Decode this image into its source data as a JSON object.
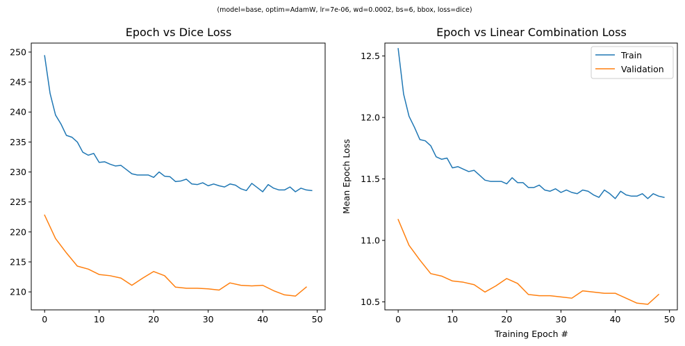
{
  "suptitle": "(model=base, optim=AdamW, lr=7e-06, wd=0.0002, bs=6, bbox, loss=dice)",
  "colors": {
    "train": "#1f77b4",
    "validation": "#ff7f0e"
  },
  "chart_data": [
    {
      "type": "line",
      "title": "Epoch vs Dice Loss",
      "xlabel": "",
      "ylabel": "",
      "xlim": [
        -2.45,
        51.45
      ],
      "ylim": [
        207.0,
        251.5
      ],
      "xticks": [
        0,
        10,
        20,
        30,
        40,
        50
      ],
      "yticks": [
        210,
        215,
        220,
        225,
        230,
        235,
        240,
        245,
        250
      ],
      "xtick_labels": [
        "0",
        "10",
        "20",
        "30",
        "40",
        "50"
      ],
      "ytick_labels": [
        "210",
        "215",
        "220",
        "225",
        "230",
        "235",
        "240",
        "245",
        "250"
      ],
      "legend": false,
      "series": [
        {
          "name": "Train",
          "color": "#1f77b4",
          "x": [
            0,
            1,
            2,
            3,
            4,
            5,
            6,
            7,
            8,
            9,
            10,
            11,
            12,
            13,
            14,
            15,
            16,
            17,
            18,
            19,
            20,
            21,
            22,
            23,
            24,
            25,
            26,
            27,
            28,
            29,
            30,
            31,
            32,
            33,
            34,
            35,
            36,
            37,
            38,
            39,
            40,
            41,
            42,
            43,
            44,
            45,
            46,
            47,
            48,
            49
          ],
          "y": [
            249.4,
            243.1,
            239.5,
            238.0,
            236.1,
            235.8,
            235.0,
            233.3,
            232.8,
            233.1,
            231.6,
            231.7,
            231.3,
            231.0,
            231.1,
            230.4,
            229.7,
            229.5,
            229.5,
            229.5,
            229.1,
            230.0,
            229.3,
            229.2,
            228.4,
            228.5,
            228.8,
            228.0,
            227.9,
            228.2,
            227.7,
            228.0,
            227.7,
            227.5,
            228.0,
            227.8,
            227.2,
            226.9,
            228.1,
            227.4,
            226.7,
            227.9,
            227.3,
            227.0,
            227.0,
            227.5,
            226.7,
            227.3,
            227.0,
            226.9
          ]
        },
        {
          "name": "Validation",
          "color": "#ff7f0e",
          "x": [
            0,
            2,
            4,
            6,
            8,
            10,
            12,
            14,
            16,
            18,
            20,
            22,
            24,
            26,
            28,
            30,
            32,
            34,
            36,
            38,
            40,
            42,
            44,
            46,
            48
          ],
          "y": [
            222.8,
            218.9,
            216.5,
            214.3,
            213.8,
            212.9,
            212.7,
            212.3,
            211.1,
            212.3,
            213.4,
            212.7,
            210.8,
            210.6,
            210.6,
            210.5,
            210.3,
            211.5,
            211.1,
            211.0,
            211.1,
            210.2,
            209.5,
            209.3,
            210.8
          ]
        }
      ]
    },
    {
      "type": "line",
      "title": "Epoch vs Linear Combination Loss",
      "xlabel": "Training Epoch #",
      "ylabel": "Mean Epoch Loss",
      "xlim": [
        -2.45,
        51.45
      ],
      "ylim": [
        10.435,
        12.605
      ],
      "xticks": [
        0,
        10,
        20,
        30,
        40,
        50
      ],
      "yticks": [
        10.5,
        11.0,
        11.5,
        12.0,
        12.5
      ],
      "xtick_labels": [
        "0",
        "10",
        "20",
        "30",
        "40",
        "50"
      ],
      "ytick_labels": [
        "10.5",
        "11.0",
        "11.5",
        "12.0",
        "12.5"
      ],
      "legend": true,
      "legend_position": "top-right",
      "series": [
        {
          "name": "Train",
          "color": "#1f77b4",
          "x": [
            0,
            1,
            2,
            3,
            4,
            5,
            6,
            7,
            8,
            9,
            10,
            11,
            12,
            13,
            14,
            15,
            16,
            17,
            18,
            19,
            20,
            21,
            22,
            23,
            24,
            25,
            26,
            27,
            28,
            29,
            30,
            31,
            32,
            33,
            34,
            35,
            36,
            37,
            38,
            39,
            40,
            41,
            42,
            43,
            44,
            45,
            46,
            47,
            48,
            49
          ],
          "y": [
            12.56,
            12.19,
            12.01,
            11.92,
            11.82,
            11.81,
            11.77,
            11.68,
            11.66,
            11.67,
            11.59,
            11.6,
            11.58,
            11.56,
            11.57,
            11.53,
            11.49,
            11.48,
            11.48,
            11.48,
            11.46,
            11.51,
            11.47,
            11.47,
            11.43,
            11.43,
            11.45,
            11.41,
            11.4,
            11.42,
            11.39,
            11.41,
            11.39,
            11.38,
            11.41,
            11.4,
            11.37,
            11.35,
            11.41,
            11.38,
            11.34,
            11.4,
            11.37,
            11.36,
            11.36,
            11.38,
            11.34,
            11.38,
            11.36,
            11.35
          ]
        },
        {
          "name": "Validation",
          "color": "#ff7f0e",
          "x": [
            0,
            2,
            4,
            6,
            8,
            10,
            12,
            14,
            16,
            18,
            20,
            22,
            24,
            26,
            28,
            30,
            32,
            34,
            36,
            38,
            40,
            42,
            44,
            46,
            48
          ],
          "y": [
            11.17,
            10.96,
            10.84,
            10.73,
            10.71,
            10.67,
            10.66,
            10.64,
            10.58,
            10.63,
            10.69,
            10.65,
            10.56,
            10.55,
            10.55,
            10.54,
            10.53,
            10.59,
            10.58,
            10.57,
            10.57,
            10.53,
            10.49,
            10.48,
            10.56
          ]
        }
      ]
    }
  ]
}
